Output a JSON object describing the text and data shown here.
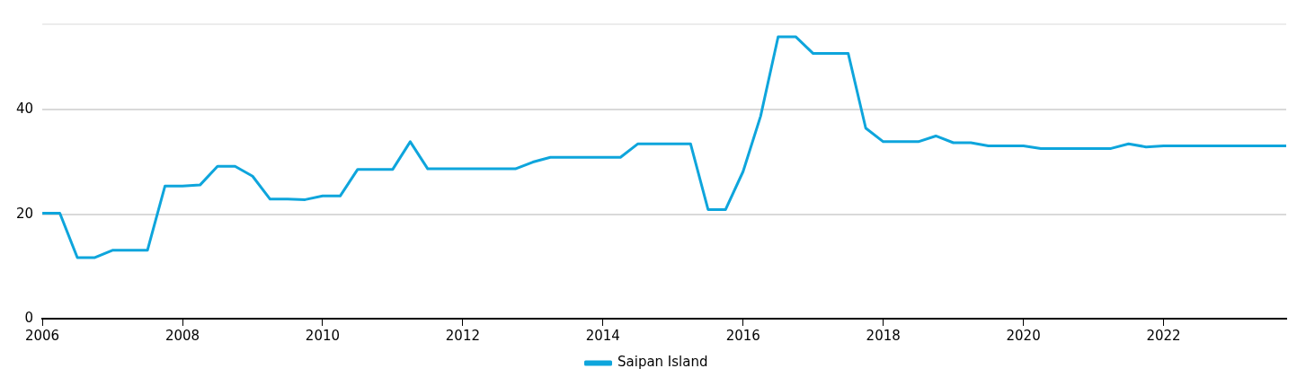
{
  "chart_data": {
    "type": "line",
    "x": [
      2006,
      2006.25,
      2006.5,
      2006.75,
      2007,
      2007.25,
      2007.5,
      2007.75,
      2008,
      2008.25,
      2008.5,
      2008.75,
      2009,
      2009.25,
      2009.5,
      2009.75,
      2010,
      2010.25,
      2010.5,
      2010.75,
      2011,
      2011.25,
      2011.5,
      2011.75,
      2012,
      2012.25,
      2012.5,
      2012.75,
      2013,
      2013.25,
      2013.5,
      2013.75,
      2014,
      2014.25,
      2014.5,
      2014.75,
      2015,
      2015.25,
      2015.5,
      2015.75,
      2016,
      2016.25,
      2016.5,
      2016.75,
      2017,
      2017.25,
      2017.5,
      2017.75,
      2018,
      2018.25,
      2018.5,
      2018.75,
      2019,
      2019.25,
      2019.5,
      2019.75,
      2020,
      2020.25,
      2020.5,
      2020.75,
      2021,
      2021.25,
      2021.5,
      2021.75,
      2022,
      2022.25,
      2022.5,
      2022.75,
      2023,
      2023.25,
      2023.5,
      2023.75
    ],
    "series": [
      {
        "name": "Saipan Island",
        "color": "#0ea5dc",
        "values": [
          20.2,
          20.2,
          11.7,
          11.7,
          13.1,
          13.1,
          13.1,
          25.4,
          25.4,
          25.6,
          29.2,
          29.2,
          27.3,
          22.9,
          22.9,
          22.8,
          23.5,
          23.5,
          28.6,
          28.6,
          28.6,
          33.9,
          28.7,
          28.7,
          28.7,
          28.7,
          28.7,
          28.7,
          30.0,
          30.9,
          30.9,
          30.9,
          30.9,
          30.9,
          33.5,
          33.5,
          33.5,
          33.5,
          20.9,
          20.9,
          28.2,
          38.8,
          54.0,
          54.0,
          50.8,
          50.8,
          50.8,
          36.5,
          33.9,
          33.9,
          33.9,
          35.0,
          33.7,
          33.7,
          33.1,
          33.1,
          33.1,
          32.6,
          32.6,
          32.6,
          32.6,
          32.6,
          33.5,
          32.9,
          33.1,
          33.1,
          33.1,
          33.1,
          33.1,
          33.1,
          33.1,
          33.1
        ]
      }
    ],
    "xlim": [
      2006,
      2023.75
    ],
    "xticks": [
      2006,
      2008,
      2010,
      2012,
      2014,
      2016,
      2018,
      2020,
      2022
    ],
    "ylim": [
      0,
      56.4
    ],
    "yticks": [
      0,
      20,
      40
    ],
    "grid": "y",
    "legend": "bottom",
    "marker": "none",
    "line_style": "solid"
  }
}
